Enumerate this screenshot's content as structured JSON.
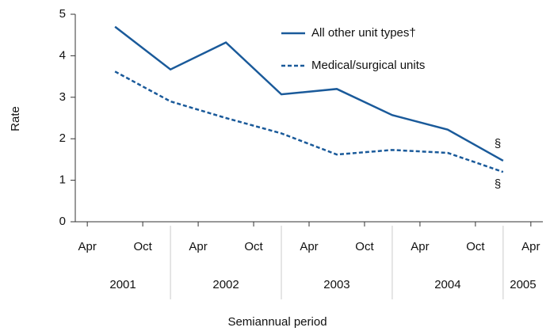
{
  "chart_data": {
    "type": "line",
    "x_label": "Semiannual period",
    "y_label": "Rate",
    "x": [
      6,
      12,
      18,
      24,
      30,
      36,
      42,
      48
    ],
    "series": [
      {
        "name": "All other unit types†",
        "color": "#1a5a9a",
        "dash": "solid",
        "values": [
          4.7,
          3.67,
          4.32,
          3.07,
          3.2,
          2.57,
          2.22,
          1.47
        ]
      },
      {
        "name": "Medical/surgical units",
        "color": "#1a5a9a",
        "dash": "dashed",
        "values": [
          3.62,
          2.9,
          2.5,
          2.13,
          1.62,
          1.73,
          1.66,
          1.2
        ]
      }
    ],
    "xlim": [
      1.7,
      52.3
    ],
    "xticks": [
      {
        "value": 3,
        "label": "Apr"
      },
      {
        "value": 9,
        "label": "Oct"
      },
      {
        "value": 15,
        "label": "Apr"
      },
      {
        "value": 21,
        "label": "Oct"
      },
      {
        "value": 27,
        "label": "Apr"
      },
      {
        "value": 33,
        "label": "Oct"
      },
      {
        "value": 39,
        "label": "Apr"
      },
      {
        "value": 45,
        "label": "Oct"
      },
      {
        "value": 51,
        "label": "Apr"
      }
    ],
    "year_groups": [
      {
        "label": "2001",
        "end": 12
      },
      {
        "label": "2002",
        "end": 24
      },
      {
        "label": "2003",
        "end": 36
      },
      {
        "label": "2004",
        "end": 48
      },
      {
        "label": "2005",
        "end": 52.3
      }
    ],
    "ylim": [
      0,
      5
    ],
    "yticks": [
      0,
      1,
      2,
      3,
      4,
      5
    ],
    "annotations": [
      "§",
      "§"
    ]
  }
}
